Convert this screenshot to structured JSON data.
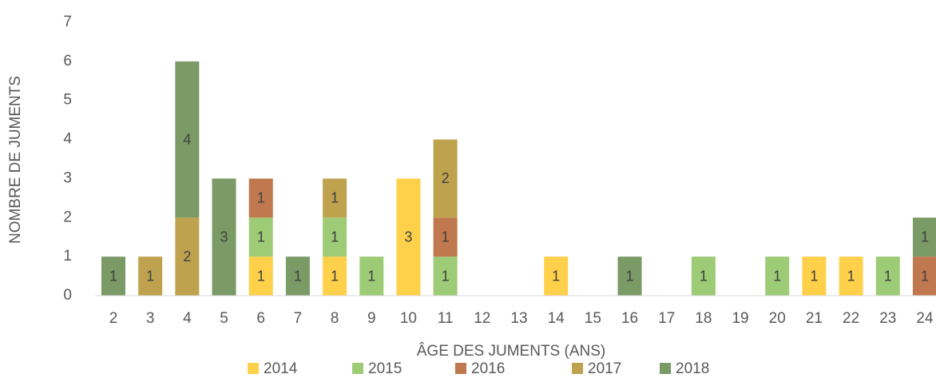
{
  "chart_data": {
    "type": "bar",
    "stacked": true,
    "x_label": "ÂGE DES JUMENTS (ANS)",
    "y_label": "NOMBRE DE JUMENTS",
    "categories": [
      "2",
      "3",
      "4",
      "5",
      "6",
      "7",
      "8",
      "9",
      "10",
      "11",
      "12",
      "13",
      "14",
      "15",
      "16",
      "17",
      "18",
      "19",
      "20",
      "21",
      "22",
      "23",
      "24"
    ],
    "series": [
      {
        "name": "2014",
        "color": "#ffd04a",
        "values": [
          null,
          null,
          null,
          null,
          1,
          null,
          1,
          null,
          3,
          null,
          null,
          null,
          1,
          null,
          null,
          null,
          null,
          null,
          null,
          1,
          1,
          null,
          null
        ]
      },
      {
        "name": "2015",
        "color": "#9dcb76",
        "values": [
          null,
          null,
          null,
          null,
          1,
          null,
          1,
          1,
          null,
          1,
          null,
          null,
          null,
          null,
          null,
          null,
          1,
          null,
          1,
          null,
          null,
          1,
          null
        ]
      },
      {
        "name": "2016",
        "color": "#c0784e",
        "values": [
          null,
          null,
          null,
          null,
          1,
          null,
          null,
          null,
          null,
          1,
          null,
          null,
          null,
          null,
          null,
          null,
          null,
          null,
          null,
          null,
          null,
          null,
          1
        ]
      },
      {
        "name": "2017",
        "color": "#bea24e",
        "values": [
          null,
          1,
          2,
          null,
          null,
          null,
          1,
          null,
          null,
          2,
          null,
          null,
          null,
          null,
          null,
          null,
          null,
          null,
          null,
          null,
          null,
          null,
          null
        ]
      },
      {
        "name": "2018",
        "color": "#7a9a66",
        "values": [
          1,
          null,
          4,
          3,
          null,
          1,
          null,
          null,
          null,
          null,
          null,
          null,
          null,
          null,
          1,
          null,
          null,
          null,
          null,
          null,
          null,
          null,
          1
        ]
      }
    ],
    "ylim": [
      0,
      7
    ],
    "yticks": [
      0,
      1,
      2,
      3,
      4,
      5,
      6,
      7
    ],
    "legend": "bottom"
  }
}
